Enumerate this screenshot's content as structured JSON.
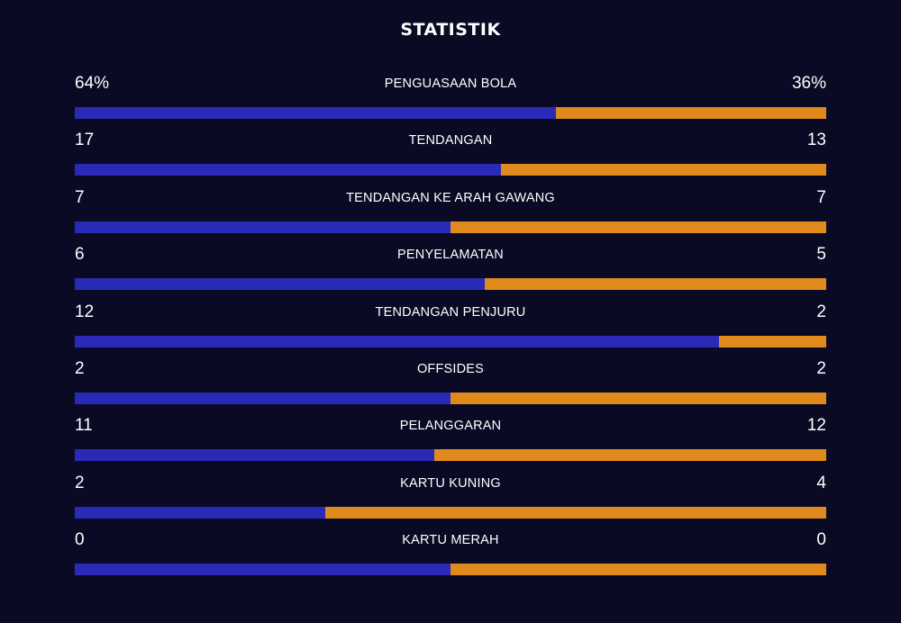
{
  "title": "STATISTIK",
  "colors": {
    "background": "#0a0a24",
    "home": "#2a2ab8",
    "away": "#e08a1e",
    "text": "#ffffff"
  },
  "stats": [
    {
      "label": "PENGUASAAN BOLA",
      "left": "64%",
      "right": "36%",
      "home_share": 0.64
    },
    {
      "label": "TENDANGAN",
      "left": "17",
      "right": "13",
      "home_share": 0.5667
    },
    {
      "label": "TENDANGAN KE ARAH GAWANG",
      "left": "7",
      "right": "7",
      "home_share": 0.5
    },
    {
      "label": "PENYELAMATAN",
      "left": "6",
      "right": "5",
      "home_share": 0.5455
    },
    {
      "label": "TENDANGAN PENJURU",
      "left": "12",
      "right": "2",
      "home_share": 0.8571
    },
    {
      "label": "OFFSIDES",
      "left": "2",
      "right": "2",
      "home_share": 0.5
    },
    {
      "label": "PELANGGARAN",
      "left": "11",
      "right": "12",
      "home_share": 0.4783
    },
    {
      "label": "KARTU KUNING",
      "left": "2",
      "right": "4",
      "home_share": 0.3333
    },
    {
      "label": "KARTU MERAH",
      "left": "0",
      "right": "0",
      "home_share": 0.5
    }
  ]
}
